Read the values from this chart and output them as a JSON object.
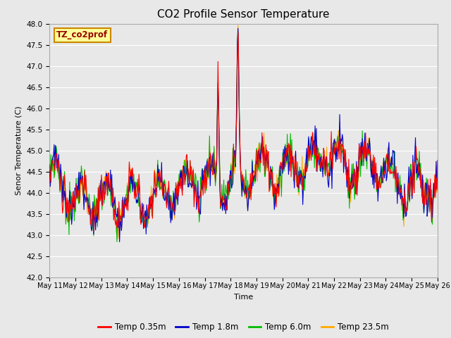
{
  "title": "CO2 Profile Sensor Temperature",
  "ylabel": "Senor Temperature (C)",
  "xlabel": "Time",
  "annotation": "TZ_co2prof",
  "ylim": [
    42.0,
    48.0
  ],
  "yticks": [
    42.0,
    42.5,
    43.0,
    43.5,
    44.0,
    44.5,
    45.0,
    45.5,
    46.0,
    46.5,
    47.0,
    47.5,
    48.0
  ],
  "x_labels": [
    "May 11",
    "May 12",
    "May 13",
    "May 14",
    "May 15",
    "May 16",
    "May 17",
    "May 18",
    "May 19",
    "May 20",
    "May 21",
    "May 22",
    "May 23",
    "May 24",
    "May 25",
    "May 26"
  ],
  "legend_entries": [
    "Temp 0.35m",
    "Temp 1.8m",
    "Temp 6.0m",
    "Temp 23.5m"
  ],
  "legend_colors": [
    "#ff0000",
    "#0000cc",
    "#00bb00",
    "#ffaa00"
  ],
  "fig_bg_color": "#e8e8e8",
  "plot_bg_color": "#e8e8e8",
  "grid_color": "#ffffff",
  "annotation_bg": "#ffff99",
  "annotation_border": "#cc8800",
  "annotation_text_color": "#990000",
  "num_points": 600
}
